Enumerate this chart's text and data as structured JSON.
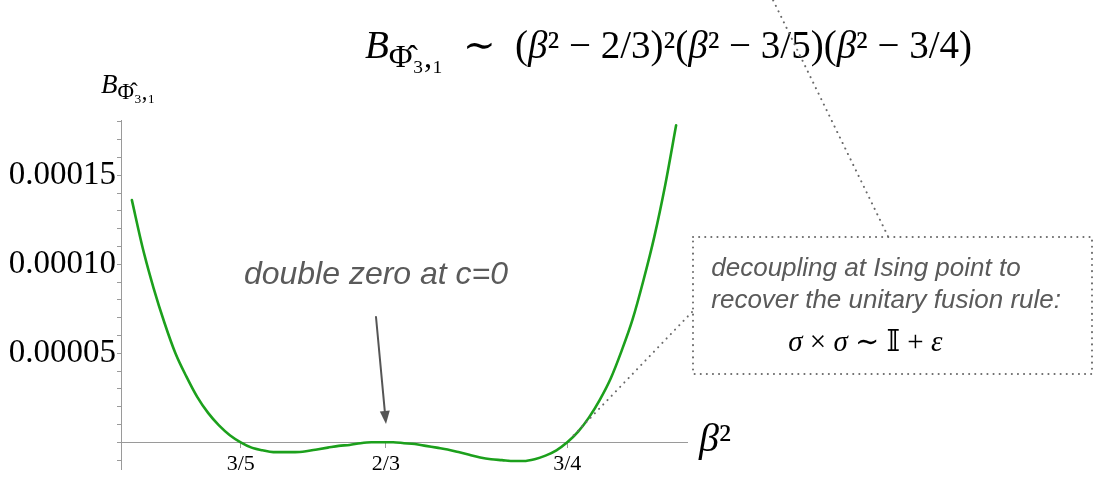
{
  "chart_data": {
    "type": "line",
    "title": "B$_{Φ̂₃,₁}$  ∼  (β² − 2/3)²(β² − 3/5)(β² − 3/4)",
    "xlabel": "β²",
    "ylabel": "B$_{Φ̂₃,₁}$",
    "x": [
      0.55,
      0.555,
      0.56,
      0.565,
      0.57,
      0.575,
      0.58,
      0.585,
      0.59,
      0.595,
      0.6,
      0.605,
      0.61,
      0.615,
      0.62,
      0.625,
      0.63,
      0.635,
      0.64,
      0.645,
      0.65,
      0.655,
      0.66,
      0.665,
      0.67,
      0.675,
      0.68,
      0.685,
      0.69,
      0.695,
      0.7,
      0.705,
      0.71,
      0.715,
      0.72,
      0.725,
      0.73,
      0.735,
      0.74,
      0.745,
      0.75,
      0.755,
      0.76,
      0.765,
      0.77,
      0.775,
      0.78,
      0.785,
      0.79,
      0.795,
      0.8
    ],
    "series": [
      {
        "color": "#1ca01c",
        "values": [
          0.000136,
          0.000109,
          8.65e-05,
          6.7e-05,
          5e-05,
          3.7e-05,
          2.55e-05,
          1.65e-05,
          9.5e-06,
          4e-06,
          0,
          -3e-06,
          -4.5e-06,
          -5.5e-06,
          -5.5e-06,
          -5.5e-06,
          -5e-06,
          -4e-06,
          -3e-06,
          -2e-06,
          -1.5e-06,
          -5e-07,
          0,
          0,
          0,
          -5e-07,
          -1e-06,
          -2e-06,
          -3e-06,
          -4e-06,
          -5.5e-06,
          -7e-06,
          -8.5e-06,
          -9.5e-06,
          -1e-05,
          -1.05e-05,
          -1.05e-05,
          -9.5e-06,
          -7.5e-06,
          -4.5e-06,
          0,
          6e-06,
          1.4e-05,
          2.4e-05,
          3.6e-05,
          5.15e-05,
          6.9e-05,
          9.1e-05,
          0.0001155,
          0.0001445,
          0.000178
        ]
      }
    ],
    "xlim": [
      0.545,
      0.805
    ],
    "ylim": [
      -1.5e-05,
      0.000181
    ],
    "xticks": [
      {
        "value": 0.6,
        "label": "3/5"
      },
      {
        "value": 0.6667,
        "label": "2/3"
      },
      {
        "value": 0.75,
        "label": "3/4"
      }
    ],
    "yticks": [
      {
        "value": -1e-05,
        "label": null
      },
      {
        "value": 0,
        "label": null
      },
      {
        "value": 1e-05,
        "label": null
      },
      {
        "value": 2e-05,
        "label": null
      },
      {
        "value": 3e-05,
        "label": null
      },
      {
        "value": 4e-05,
        "label": null
      },
      {
        "value": 5e-05,
        "label": "0.00005"
      },
      {
        "value": 6e-05,
        "label": null
      },
      {
        "value": 7e-05,
        "label": null
      },
      {
        "value": 8e-05,
        "label": null
      },
      {
        "value": 9e-05,
        "label": null
      },
      {
        "value": 0.0001,
        "label": "0.00010"
      },
      {
        "value": 0.00011,
        "label": null
      },
      {
        "value": 0.00012,
        "label": null
      },
      {
        "value": 0.00013,
        "label": null
      },
      {
        "value": 0.00014,
        "label": null
      },
      {
        "value": 0.00015,
        "label": "0.00015"
      },
      {
        "value": 0.00016,
        "label": null
      },
      {
        "value": 0.00017,
        "label": null
      },
      {
        "value": 0.00018,
        "label": null
      }
    ],
    "grid": false,
    "legend": false,
    "marker": "none",
    "line_style": "solid",
    "annotations": [
      "double zero at c=0",
      {
        "text": "decoupling at Ising point to recover the unitary fusion rule:",
        "x": 0.75,
        "y": 0
      },
      "σ × σ ∼ 𝕀 + ε"
    ]
  }
}
